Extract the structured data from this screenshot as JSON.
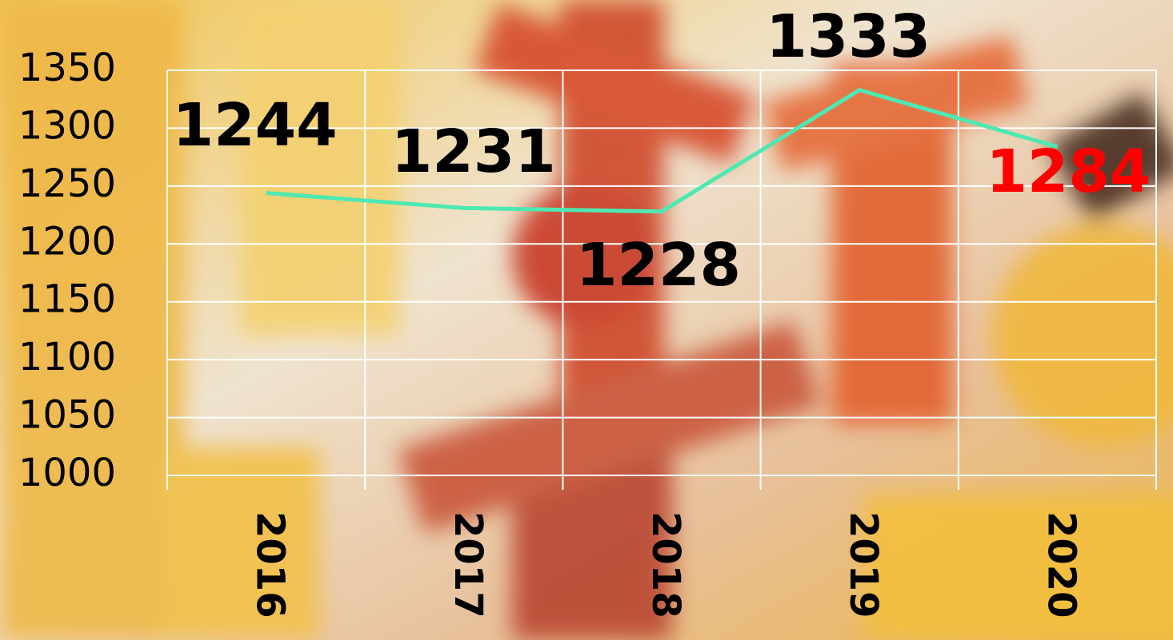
{
  "chart_data": {
    "type": "line",
    "categories": [
      "2016",
      "2017",
      "2018",
      "2019",
      "2020"
    ],
    "series": [
      {
        "values": [
          1244,
          1231,
          1228,
          1333,
          1284
        ],
        "color": "#4ee8b2"
      }
    ],
    "value_label_colors": [
      "#000000",
      "#000000",
      "#000000",
      "#000000",
      "#ff0000"
    ],
    "ylim": [
      1000,
      1350
    ],
    "yticks": [
      1000,
      1050,
      1100,
      1150,
      1200,
      1250,
      1300,
      1350
    ],
    "grid": true,
    "grid_color": "#ffffff"
  }
}
